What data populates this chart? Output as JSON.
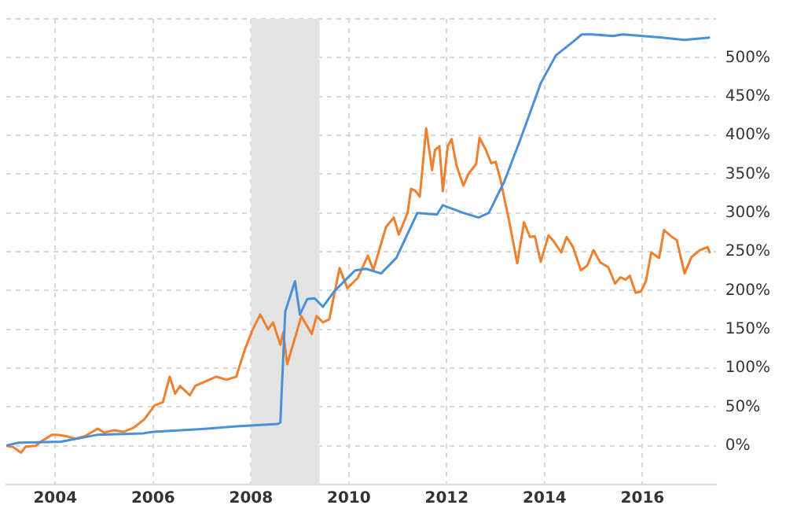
{
  "chart_data": {
    "type": "line",
    "xlim": [
      2003,
      2017.5
    ],
    "xticks": [
      2004,
      2006,
      2008,
      2010,
      2012,
      2014,
      2016
    ],
    "ylim": [
      -50,
      550
    ],
    "yticks": [
      {
        "value": -50,
        "label": null
      },
      {
        "value": 0,
        "label": "0%"
      },
      {
        "value": 50,
        "label": "50%"
      },
      {
        "value": 100,
        "label": "100%"
      },
      {
        "value": 150,
        "label": "150%"
      },
      {
        "value": 200,
        "label": "200%"
      },
      {
        "value": 250,
        "label": "250%"
      },
      {
        "value": 300,
        "label": "300%"
      },
      {
        "value": 350,
        "label": "350%"
      },
      {
        "value": 400,
        "label": "400%"
      },
      {
        "value": 450,
        "label": "450%"
      },
      {
        "value": 500,
        "label": "500%"
      },
      {
        "value": 550,
        "label": null
      }
    ],
    "grid": true,
    "legend": false,
    "marker": "none",
    "line_style": "solid",
    "bands": [
      {
        "axis": "x",
        "from": 2008,
        "to": 2009.4,
        "color": "#e3e3e3"
      }
    ],
    "series": [
      {
        "color": "#4a90d9",
        "x": [
          2003,
          2003.25,
          2004,
          2004.1,
          2004.85,
          2005.8,
          2006,
          2007.1,
          2007.7,
          2008.55,
          2008.6,
          2008.7,
          2008.9,
          2009,
          2009.15,
          2009.3,
          2009.47,
          2009.7,
          2010.13,
          2010.35,
          2010.66,
          2010.97,
          2011.4,
          2011.8,
          2011.92,
          2012,
          2012.34,
          2012.65,
          2012.86,
          2013.18,
          2013.5,
          2013.92,
          2014.23,
          2014.55,
          2014.76,
          2014.97,
          2015.4,
          2015.6,
          2016,
          2016.4,
          2016.85,
          2017.38
        ],
        "values": [
          0,
          4,
          5,
          5,
          14,
          16,
          18,
          22,
          25,
          28,
          30,
          173,
          212,
          169,
          189,
          190,
          179,
          199,
          226,
          228,
          222,
          242,
          300,
          298,
          310,
          308,
          300,
          294,
          300,
          341,
          394,
          467,
          503,
          519,
          530,
          530,
          528,
          530,
          528,
          526,
          523,
          526
        ]
      },
      {
        "color": "#f07f2e",
        "x": [
          2003,
          2003.15,
          2003.3,
          2003.4,
          2003.6,
          2003.7,
          2003.93,
          2004.04,
          2004.25,
          2004.4,
          2004.6,
          2004.87,
          2005,
          2005.2,
          2005.4,
          2005.6,
          2005.82,
          2006.03,
          2006.2,
          2006.34,
          2006.45,
          2006.55,
          2006.75,
          2006.86,
          2007.07,
          2007.18,
          2007.29,
          2007.5,
          2007.7,
          2007.87,
          2008.03,
          2008.19,
          2008.35,
          2008.45,
          2008.6,
          2008.66,
          2008.74,
          2009.03,
          2009.24,
          2009.34,
          2009.47,
          2009.6,
          2009.81,
          2009.97,
          2010.18,
          2010.39,
          2010.5,
          2010.76,
          2010.92,
          2011.02,
          2011.2,
          2011.27,
          2011.35,
          2011.45,
          2011.58,
          2011.7,
          2011.76,
          2011.85,
          2011.92,
          2012.02,
          2012.1,
          2012.2,
          2012.34,
          2012.44,
          2012.6,
          2012.67,
          2012.8,
          2012.91,
          2013,
          2013.1,
          2013.28,
          2013.44,
          2013.58,
          2013.7,
          2013.8,
          2013.92,
          2014.08,
          2014.18,
          2014.34,
          2014.45,
          2014.58,
          2014.74,
          2014.87,
          2015,
          2015.14,
          2015.3,
          2015.44,
          2015.55,
          2015.65,
          2015.74,
          2015.86,
          2015.97,
          2016.07,
          2016.18,
          2016.34,
          2016.44,
          2016.6,
          2016.7,
          2016.86,
          2017,
          2017.17,
          2017.33,
          2017.38
        ],
        "values": [
          0,
          -2,
          -9,
          -1,
          0,
          5,
          14,
          14,
          12,
          9,
          12,
          22,
          17,
          20,
          18,
          23,
          34,
          52,
          56,
          89,
          67,
          77,
          65,
          77,
          83,
          86,
          89,
          85,
          89,
          123,
          149,
          169,
          150,
          159,
          130,
          146,
          105,
          167,
          144,
          167,
          159,
          163,
          229,
          203,
          216,
          245,
          226,
          282,
          294,
          272,
          300,
          331,
          329,
          321,
          409,
          355,
          381,
          386,
          328,
          386,
          395,
          361,
          335,
          350,
          363,
          397,
          381,
          364,
          366,
          342,
          288,
          235,
          288,
          269,
          270,
          237,
          271,
          264,
          249,
          269,
          256,
          226,
          232,
          252,
          236,
          230,
          209,
          217,
          214,
          219,
          197,
          199,
          212,
          249,
          242,
          278,
          269,
          265,
          222,
          243,
          252,
          256,
          248
        ]
      }
    ]
  }
}
